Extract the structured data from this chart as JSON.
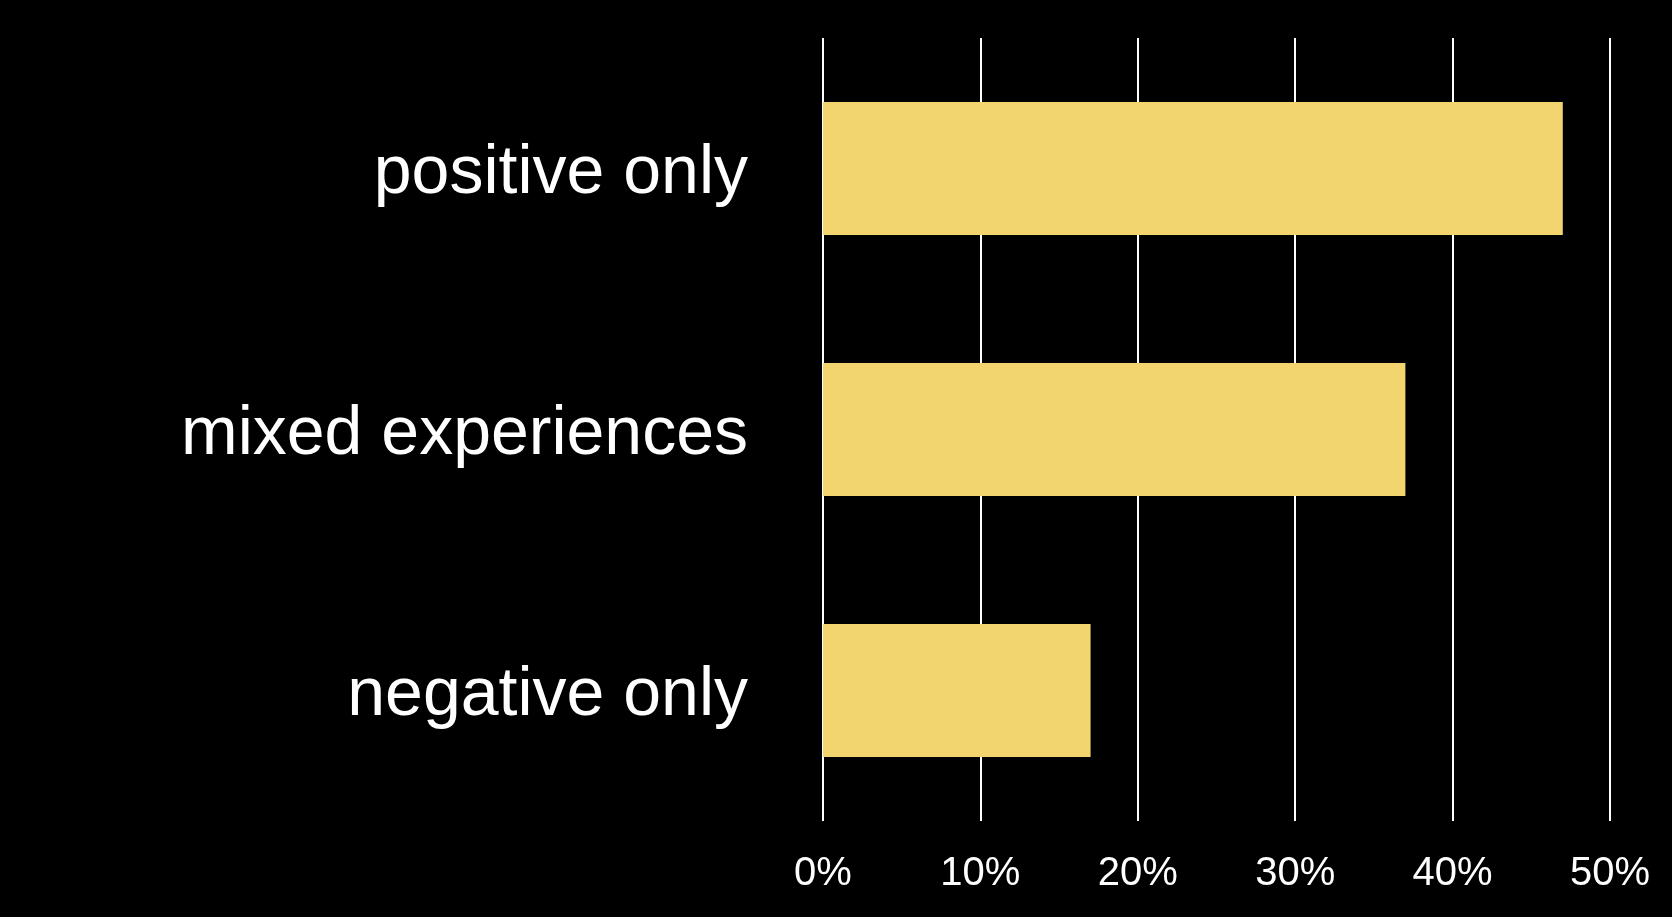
{
  "chart_data": {
    "type": "bar",
    "orientation": "horizontal",
    "categories": [
      "positive only",
      "mixed experiences",
      "negative only"
    ],
    "values": [
      47,
      37,
      17
    ],
    "color": "#f2d56f",
    "xlim": [
      0,
      50
    ],
    "xticks": [
      {
        "value": 0,
        "label": "0%"
      },
      {
        "value": 10,
        "label": "10%"
      },
      {
        "value": 20,
        "label": "20%"
      },
      {
        "value": 30,
        "label": "30%"
      },
      {
        "value": 40,
        "label": "40%"
      },
      {
        "value": 50,
        "label": "50%"
      }
    ],
    "grid": "x"
  }
}
